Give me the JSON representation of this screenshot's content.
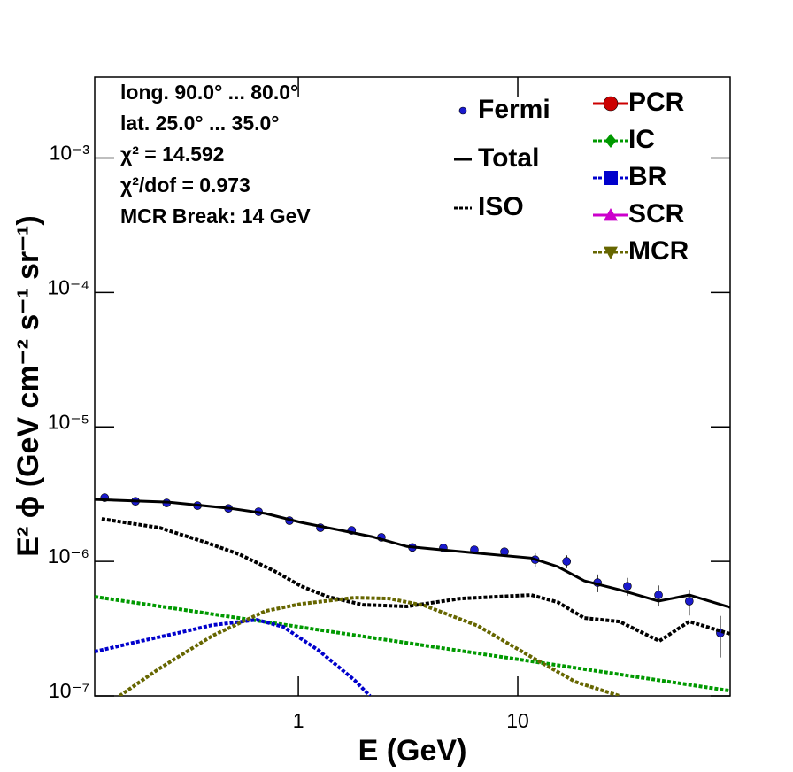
{
  "chart_data": {
    "type": "line",
    "xlabel": "E (GeV)",
    "ylabel": "E² ϕ (GeV cm⁻² s⁻¹ sr⁻¹)",
    "annotations": [
      "long. 90.0° ... 80.0°",
      "lat. 25.0° ... 35.0°",
      "χ² = 14.592",
      "χ²/dof = 0.973",
      "MCR Break: 14 GeV"
    ],
    "log_x": true,
    "log_y": true,
    "xlim": [
      0.118,
      92.9
    ],
    "ylim": [
      1e-07,
      0.004
    ],
    "xticks": [
      1,
      10
    ],
    "yticks": [
      {
        "value": 1e-07,
        "label": "10⁻⁷"
      },
      {
        "value": 1e-06,
        "label": "10⁻⁶"
      },
      {
        "value": 1e-05,
        "label": "10⁻⁵"
      },
      {
        "value": 0.0001,
        "label": "10⁻⁴"
      },
      {
        "value": 0.001,
        "label": "10⁻³"
      }
    ],
    "series": [
      {
        "name": "Fermi",
        "color": "#1a1acc",
        "marker": "circle",
        "line": "none",
        "x": [
          0.131,
          0.181,
          0.251,
          0.347,
          0.48,
          0.659,
          0.911,
          1.26,
          1.75,
          2.39,
          3.31,
          4.58,
          6.34,
          8.7,
          12.0,
          16.7,
          23.1,
          31.6,
          43.8,
          60.5,
          83.8
        ],
        "values": [
          2.98e-06,
          2.8e-06,
          2.72e-06,
          2.6e-06,
          2.48e-06,
          2.34e-06,
          2.01e-06,
          1.78e-06,
          1.7e-06,
          1.51e-06,
          1.27e-06,
          1.26e-06,
          1.22e-06,
          1.18e-06,
          1.03e-06,
          1e-06,
          6.95e-07,
          6.54e-07,
          5.62e-07,
          5.06e-07,
          2.93e-07
        ],
        "errors": [
          5e-08,
          5e-08,
          5e-08,
          5e-08,
          5e-08,
          5e-08,
          4e-08,
          4e-08,
          4e-08,
          4e-08,
          4e-08,
          4e-08,
          4e-08,
          5e-08,
          1.2e-07,
          1.1e-07,
          1.05e-07,
          1e-07,
          1e-07,
          1.1e-07,
          1e-07
        ]
      },
      {
        "name": "Total",
        "color": "#000000",
        "marker": "none",
        "line": "solid",
        "x": [
          0.118,
          0.255,
          0.489,
          0.709,
          1.03,
          1.49,
          2.16,
          3.13,
          6.59,
          11.5,
          15.2,
          20.1,
          29.1,
          43.8,
          60.5,
          92.9
        ],
        "values": [
          2.89e-06,
          2.76e-06,
          2.48e-06,
          2.27e-06,
          1.95e-06,
          1.73e-06,
          1.53e-06,
          1.29e-06,
          1.15e-06,
          1.06e-06,
          9.14e-07,
          7.17e-07,
          6.15e-07,
          5.06e-07,
          5.62e-07,
          4.55e-07
        ]
      },
      {
        "name": "ISO",
        "color": "#000000",
        "marker": "none",
        "line": "dotted",
        "x": [
          0.127,
          0.233,
          0.371,
          0.537,
          0.778,
          1.03,
          1.36,
          1.97,
          3.13,
          5.47,
          11.5,
          15.2,
          20.1,
          29.1,
          44.2,
          60.5,
          92.9
        ],
        "values": [
          2.07e-06,
          1.78e-06,
          1.4e-06,
          1.13e-06,
          8.47e-07,
          6.54e-07,
          5.46e-07,
          4.76e-07,
          4.62e-07,
          5.29e-07,
          5.62e-07,
          4.98e-07,
          3.79e-07,
          3.57e-07,
          2.56e-07,
          3.57e-07,
          2.89e-07
        ]
      },
      {
        "name": "PCR",
        "color": "#cc0000",
        "marker": "circle",
        "line": "solid",
        "x": [],
        "values": []
      },
      {
        "name": "IC",
        "color": "#009900",
        "marker": "diamond",
        "line": "dotted",
        "x": [
          0.118,
          1,
          10,
          92.9
        ],
        "values": [
          5.46e-07,
          3.26e-07,
          1.87e-07,
          1.09e-07
        ]
      },
      {
        "name": "BR",
        "color": "#0000cc",
        "marker": "square",
        "line": "dotted",
        "x": [
          0.118,
          0.176,
          0.281,
          0.406,
          0.646,
          0.854,
          1.24,
          1.8,
          2.12
        ],
        "values": [
          2.13e-07,
          2.48e-07,
          2.93e-07,
          3.36e-07,
          3.68e-07,
          3.26e-07,
          2.17e-07,
          1.31e-07,
          1e-07
        ]
      },
      {
        "name": "SCR",
        "color": "#cc00cc",
        "marker": "triangle-up",
        "line": "solid",
        "x": [],
        "values": []
      },
      {
        "name": "MCR",
        "color": "#666600",
        "marker": "triangle-down",
        "line": "dotted",
        "x": [
          0.153,
          0.233,
          0.406,
          0.709,
          1.03,
          1.8,
          2.6,
          3.77,
          6.59,
          11.5,
          18.3,
          29.1
        ],
        "values": [
          1e-07,
          1.6e-07,
          2.8e-07,
          4.28e-07,
          4.83e-07,
          5.37e-07,
          5.29e-07,
          4.69e-07,
          3.31e-07,
          1.95e-07,
          1.27e-07,
          1e-07
        ]
      }
    ]
  }
}
